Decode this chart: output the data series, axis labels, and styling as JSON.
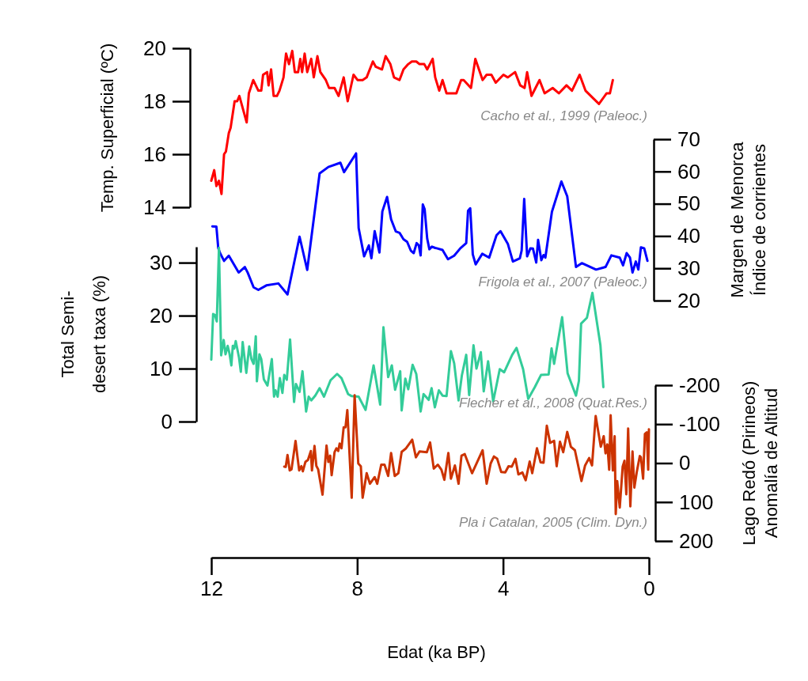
{
  "chart_data": [
    {
      "type": "line",
      "ylabel": "Temp. Superficial (ºC)",
      "xlim": [
        12,
        0
      ],
      "ylim": [
        14,
        20
      ],
      "yticks": [
        14,
        16,
        18,
        20
      ],
      "tick_labels": "y",
      "annotations": [
        "Cacho et al., 1999 (Paleoc.)"
      ],
      "series": [
        {
          "color": "#ff0000",
          "x": [
            12.0,
            11.92,
            11.86,
            11.79,
            11.72,
            11.65,
            11.6,
            11.52,
            11.47,
            11.36,
            11.29,
            11.23,
            11.03,
            10.97,
            10.85,
            10.71,
            10.63,
            10.58,
            10.47,
            10.43,
            10.36,
            10.29,
            10.2,
            10.13,
            10.02,
            9.95,
            9.87,
            9.78,
            9.71,
            9.62,
            9.56,
            9.51,
            9.44,
            9.37,
            9.26,
            9.19,
            9.09,
            9.01,
            8.86,
            8.77,
            8.62,
            8.51,
            8.37,
            8.26,
            8.1,
            7.99,
            7.85,
            7.74,
            7.57,
            7.49,
            7.32,
            7.22,
            7.09,
            6.99,
            6.84,
            6.73,
            6.6,
            6.5,
            6.38,
            6.29,
            6.16,
            6.08,
            5.93,
            5.86,
            5.75,
            5.66,
            5.55,
            5.43,
            5.28,
            5.15,
            5.08,
            4.88,
            4.76,
            4.56,
            4.45,
            4.32,
            4.2,
            3.99,
            3.87,
            3.67,
            3.53,
            3.41,
            3.34,
            3.22,
            3.0,
            2.86,
            2.64,
            2.47,
            2.26,
            2.11,
            1.9,
            1.74,
            1.52,
            1.37,
            1.16,
            1.07,
            0.99
          ],
          "values": [
            15.0,
            15.4,
            14.8,
            15.0,
            14.5,
            16.0,
            16.1,
            16.8,
            17.0,
            18.0,
            18.0,
            18.2,
            17.2,
            18.3,
            18.8,
            18.4,
            18.4,
            19.0,
            19.1,
            18.6,
            19.2,
            18.2,
            18.2,
            18.4,
            18.9,
            19.8,
            19.4,
            19.9,
            19.1,
            19.1,
            19.6,
            19.1,
            19.8,
            19.1,
            19.6,
            18.9,
            19.7,
            19.1,
            18.8,
            18.5,
            18.5,
            18.2,
            18.9,
            18.0,
            19.0,
            18.8,
            18.8,
            18.9,
            19.5,
            19.3,
            19.2,
            19.7,
            19.4,
            18.9,
            18.8,
            19.2,
            19.4,
            19.5,
            19.5,
            19.4,
            19.4,
            19.2,
            19.6,
            18.9,
            18.4,
            18.8,
            18.3,
            18.3,
            18.3,
            18.8,
            18.8,
            18.5,
            19.6,
            18.8,
            19.0,
            19.0,
            18.7,
            19.0,
            18.9,
            19.1,
            18.6,
            18.5,
            19.1,
            18.2,
            18.8,
            18.3,
            18.5,
            18.3,
            18.6,
            18.4,
            19.0,
            18.4,
            18.1,
            17.9,
            18.3,
            18.3,
            18.8
          ]
        }
      ]
    },
    {
      "type": "line",
      "y2label": "Margen de Menorca\nÍndice de corrientes",
      "xlim": [
        12,
        0
      ],
      "y2lim": [
        20,
        70
      ],
      "y2ticks": [
        20,
        30,
        40,
        50,
        60,
        70
      ],
      "tick_labels": "y",
      "annotations": [
        "Frigola et al., 2007 (Paleoc.)"
      ],
      "series": [
        {
          "color": "#0000ff",
          "axis": "y2",
          "x": [
            11.97,
            11.86,
            11.81,
            11.76,
            11.65,
            11.52,
            11.25,
            11.08,
            11.0,
            10.84,
            10.71,
            10.49,
            10.16,
            9.91,
            9.58,
            9.37,
            9.03,
            8.79,
            8.46,
            8.36,
            8.03,
            7.96,
            7.81,
            7.68,
            7.61,
            7.52,
            7.39,
            7.31,
            7.18,
            7.07,
            6.94,
            6.84,
            6.73,
            6.63,
            6.53,
            6.45,
            6.37,
            6.31,
            6.26,
            6.2,
            6.15,
            6.08,
            6.02,
            5.95,
            5.86,
            5.82,
            5.66,
            5.51,
            5.34,
            5.17,
            5.01,
            4.96,
            4.9,
            4.83,
            4.75,
            4.57,
            4.38,
            4.18,
            4.07,
            3.87,
            3.73,
            3.54,
            3.49,
            3.42,
            3.34,
            3.25,
            3.18,
            3.09,
            3.04,
            2.95,
            2.89,
            2.84,
            2.66,
            2.4,
            2.24,
            2.0,
            1.84,
            1.45,
            1.19,
            1.03,
            0.8,
            0.71,
            0.61,
            0.52,
            0.45,
            0.36,
            0.29,
            0.22,
            0.13,
            0.04
          ],
          "values": [
            43,
            42.9,
            36.3,
            34.7,
            32.3,
            33.9,
            28.7,
            30.4,
            28.6,
            24.1,
            23.3,
            24.7,
            25.3,
            21.9,
            39.8,
            29.5,
            59.4,
            61.4,
            62.7,
            59.8,
            65.6,
            42.5,
            33.7,
            37.1,
            33.1,
            41.5,
            34.9,
            47.6,
            52.1,
            45.2,
            41.4,
            41,
            39,
            38.2,
            35.5,
            34.7,
            37.8,
            37.1,
            34,
            49.8,
            48.3,
            39.2,
            35.9,
            36.7,
            36.3,
            36.2,
            35.7,
            32.8,
            33.9,
            36.2,
            37.8,
            47.8,
            48.6,
            34.3,
            31.2,
            34.5,
            33.3,
            40.2,
            41.5,
            37.6,
            32.1,
            33.1,
            35.5,
            51.5,
            33.7,
            36.2,
            36.1,
            31.8,
            38.8,
            32.5,
            34.1,
            33.3,
            47.5,
            56.9,
            52.3,
            30.4,
            31.6,
            29.6,
            30.4,
            34,
            33.3,
            30.9,
            34.7,
            33.3,
            28.7,
            32.1,
            29.6,
            36.5,
            36.2,
            32.3
          ]
        }
      ]
    },
    {
      "type": "line",
      "ylabel": "Total Semi-\ndesert taxa (%)",
      "xlim": [
        12,
        0
      ],
      "ylim": [
        0,
        33
      ],
      "yticks": [
        0,
        10,
        20,
        30
      ],
      "tick_labels": "y",
      "annotations": [
        "Flecher et al., 2008  (Quat.Res.)"
      ],
      "series": [
        {
          "color": "#33cc99",
          "x": [
            12.0,
            11.95,
            11.9,
            11.85,
            11.79,
            11.73,
            11.66,
            11.61,
            11.55,
            11.5,
            11.45,
            11.41,
            11.37,
            11.33,
            11.24,
            11.19,
            11.14,
            11.04,
            10.96,
            10.9,
            10.84,
            10.78,
            10.75,
            10.68,
            10.63,
            10.56,
            10.46,
            10.34,
            10.28,
            10.24,
            10.18,
            10.12,
            10.05,
            10.0,
            9.93,
            9.84,
            9.73,
            9.68,
            9.58,
            9.5,
            9.4,
            9.33,
            9.26,
            9.15,
            9.03,
            8.91,
            8.73,
            8.55,
            8.43,
            8.25,
            8.15,
            7.96,
            7.77,
            7.55,
            7.37,
            7.28,
            7.15,
            7.05,
            6.96,
            6.82,
            6.78,
            6.68,
            6.6,
            6.48,
            6.38,
            6.26,
            6.18,
            6.04,
            5.96,
            5.87,
            5.76,
            5.66,
            5.55,
            5.43,
            5.34,
            5.22,
            5.13,
            5.01,
            4.93,
            4.81,
            4.73,
            4.61,
            4.53,
            4.41,
            4.27,
            4.09,
            3.97,
            3.75,
            3.63,
            3.45,
            3.31,
            3.13,
            2.96,
            2.75,
            2.67,
            2.6,
            2.38,
            2.23,
            2.0,
            1.92,
            1.86,
            1.7,
            1.55,
            1.33,
            1.25
          ],
          "values": [
            11.7,
            20.3,
            20.1,
            18.9,
            32.8,
            12.5,
            15.4,
            12.7,
            14.3,
            12.8,
            10.6,
            14.3,
            13.8,
            15.2,
            12.1,
            9.4,
            15,
            9.2,
            14.2,
            11.8,
            10.9,
            16.1,
            7.6,
            12.7,
            11.8,
            8,
            6.8,
            11.8,
            4.7,
            5.9,
            4.7,
            8.2,
            5.4,
            8.8,
            7.9,
            15.5,
            3.7,
            7.1,
            5.6,
            9.5,
            1.9,
            4.7,
            4,
            4.9,
            6.3,
            4.7,
            7.8,
            9,
            8.2,
            5.2,
            4.8,
            4.7,
            2.2,
            10.6,
            3.2,
            17.8,
            8.4,
            10.6,
            6,
            9.5,
            2.1,
            8.1,
            6.1,
            10.7,
            9,
            1.9,
            5.2,
            4.1,
            6.3,
            2.7,
            5.9,
            4.9,
            4.8,
            13.3,
            11,
            4,
            8.7,
            12.6,
            5,
            14.4,
            10,
            13.1,
            5.7,
            11.4,
            3.8,
            9.9,
            9.3,
            12.6,
            13.9,
            9.9,
            4.3,
            6.5,
            8.8,
            8.9,
            13.8,
            10.9,
            19.7,
            9.1,
            4.9,
            7.7,
            18.5,
            19.6,
            24.3,
            14.4,
            6.5
          ]
        }
      ]
    },
    {
      "type": "line",
      "xlabel": "Edat (ka BP)",
      "y2label": "Lago Redó (Pirineos)\nAnomalía de Altitud",
      "xlim": [
        12,
        0
      ],
      "xticks": [
        12,
        8,
        4,
        0
      ],
      "y2lim": [
        200,
        -200
      ],
      "y2ticks": [
        -200,
        -100,
        0,
        100,
        200
      ],
      "annotations": [
        "Pla i Catalan, 2005 (Clim. Dyn.)"
      ],
      "series": [
        {
          "color": "#cc3300",
          "axis": "y2",
          "x": [
            10.0,
            9.96,
            9.91,
            9.85,
            9.8,
            9.69,
            9.64,
            9.59,
            9.53,
            9.49,
            9.42,
            9.35,
            9.27,
            9.24,
            9.17,
            9.12,
            9.07,
            8.95,
            8.84,
            8.79,
            8.74,
            8.7,
            8.62,
            8.57,
            8.52,
            8.48,
            8.43,
            8.37,
            8.32,
            8.27,
            8.15,
            8.07,
            7.97,
            7.9,
            7.85,
            7.74,
            7.65,
            7.52,
            7.45,
            7.34,
            7.25,
            7.15,
            7.07,
            6.97,
            6.87,
            6.78,
            6.67,
            6.49,
            6.39,
            6.29,
            6.09,
            6.0,
            5.9,
            5.79,
            5.69,
            5.61,
            5.5,
            5.43,
            5.32,
            5.22,
            5.14,
            5.05,
            4.85,
            4.56,
            4.45,
            4.34,
            4.25,
            4.16,
            4.05,
            3.94,
            3.85,
            3.76,
            3.66,
            3.58,
            3.47,
            3.38,
            3.27,
            3.2,
            3.07,
            2.97,
            2.89,
            2.8,
            2.71,
            2.6,
            2.53,
            2.44,
            2.35,
            2.24,
            2.14,
            2.03,
            1.85,
            1.75,
            1.64,
            1.56,
            1.46,
            1.35,
            1.32,
            1.24,
            1.19,
            1.14,
            1.09,
            1.05,
            0.99,
            0.94,
            0.91,
            0.87,
            0.8,
            0.72,
            0.67,
            0.62,
            0.57,
            0.51,
            0.45,
            0.4,
            0.33,
            0.25,
            0.22,
            0.16,
            0.11,
            0.06,
            0.02,
            0.0
          ],
          "values": [
            9,
            10,
            -21,
            19,
            16,
            -57,
            -18,
            19,
            8,
            21,
            -3,
            -8,
            -31,
            19,
            -44,
            7,
            16,
            81,
            -45,
            -3,
            -19,
            31,
            -28,
            -38,
            -31,
            -50,
            -38,
            -92,
            -92,
            -136,
            89,
            -174,
            1,
            8,
            89,
            26,
            53,
            36,
            53,
            4,
            4,
            33,
            -26,
            33,
            26,
            -29,
            -37,
            -60,
            -15,
            -30,
            -28,
            -53,
            14,
            4,
            17,
            43,
            -26,
            40,
            6,
            53,
            -19,
            -23,
            26,
            -33,
            53,
            1,
            -17,
            -11,
            23,
            24,
            8,
            9,
            -11,
            29,
            24,
            44,
            -4,
            26,
            -38,
            -2,
            -1,
            -96,
            -52,
            -57,
            8,
            -55,
            -28,
            -80,
            -42,
            -33,
            46,
            6,
            -13,
            6,
            -121,
            -59,
            -42,
            -69,
            -25,
            -48,
            17,
            -123,
            19,
            -69,
            131,
            46,
            114,
            9,
            -6,
            80,
            -89,
            111,
            -30,
            63,
            21,
            -18,
            -15,
            40,
            -75,
            -79,
            17,
            -87
          ]
        }
      ]
    }
  ]
}
